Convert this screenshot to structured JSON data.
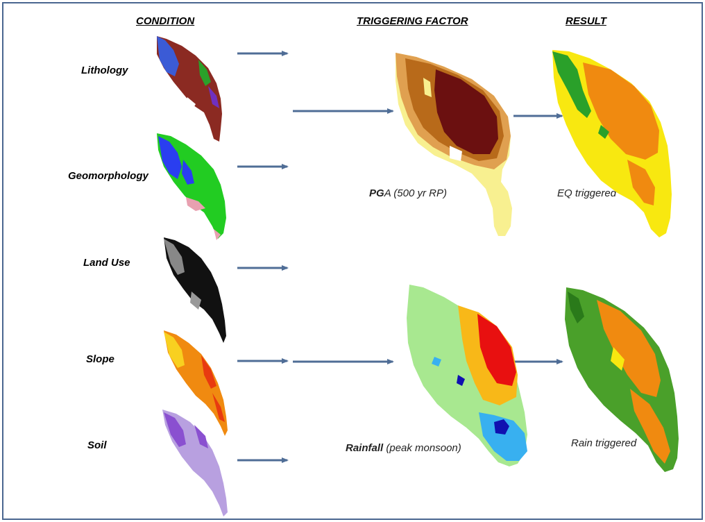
{
  "headers": {
    "condition": "CONDITION",
    "triggering": "TRIGGERING FACTOR",
    "result": "RESULT"
  },
  "conditions": [
    {
      "label": "Lithology",
      "icon": "lithology-map-icon"
    },
    {
      "label": "Geomorphology",
      "icon": "geomorphology-map-icon"
    },
    {
      "label": "Land Use",
      "icon": "land-use-map-icon"
    },
    {
      "label": "Slope",
      "icon": "slope-map-icon"
    },
    {
      "label": "Soil",
      "icon": "soil-map-icon"
    }
  ],
  "triggers": [
    {
      "label_bold": "PG",
      "label_rest": "A (500 yr RP)"
    },
    {
      "label_bold": "Rainfall",
      "label_rest": " (peak monsoon)"
    }
  ],
  "results": [
    {
      "label": "EQ triggered"
    },
    {
      "label": "Rain triggered"
    }
  ],
  "colors": {
    "frame": "#4a6690",
    "arrow": "#4f6d96",
    "lithology": [
      "#8b2a22",
      "#3b5bd6",
      "#2aa02a",
      "#7030c0"
    ],
    "geomorphology": [
      "#22cc22",
      "#2a3ef0",
      "#e8a0b0"
    ],
    "landuse": [
      "#111111",
      "#888888"
    ],
    "slope": [
      "#f08a10",
      "#e83a10",
      "#f8d020"
    ],
    "soil": [
      "#b8a0e0",
      "#8a50d0"
    ],
    "pga": [
      "#6b1010",
      "#b86a1a",
      "#e0a050",
      "#f8f090"
    ],
    "rainfall": [
      "#a8e890",
      "#f8b818",
      "#e81010",
      "#38b0f0",
      "#1010b0"
    ],
    "eq_result": [
      "#f8e810",
      "#f08a10",
      "#2aa02a"
    ],
    "rain_result": [
      "#4aa02a",
      "#f08a10",
      "#f8e810"
    ]
  }
}
